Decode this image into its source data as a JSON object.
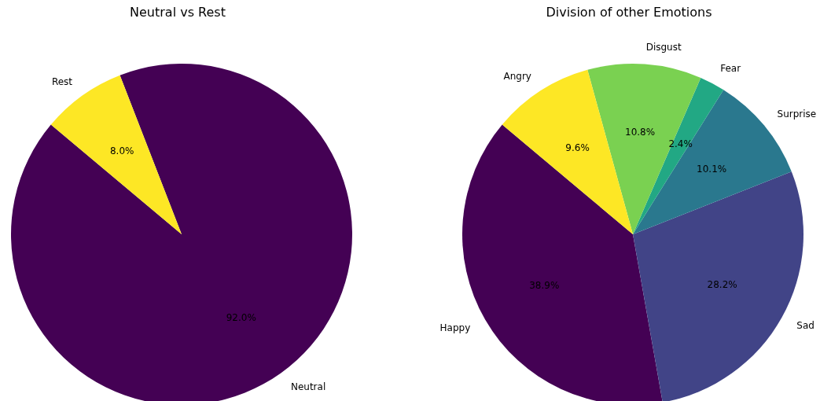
{
  "chart_data": [
    {
      "type": "pie",
      "title": "Neutral vs Rest",
      "categories": [
        "Neutral",
        "Rest"
      ],
      "values": [
        92.0,
        8.0
      ],
      "value_labels": [
        "92.0%",
        "8.0%"
      ],
      "colors": [
        "#440154",
        "#fde725"
      ]
    },
    {
      "type": "pie",
      "title": "Division of other Emotions",
      "categories": [
        "Happy",
        "Sad",
        "Surprise",
        "Fear",
        "Disgust",
        "Angry"
      ],
      "values": [
        38.9,
        28.2,
        10.1,
        2.4,
        10.8,
        9.6
      ],
      "value_labels": [
        "38.9%",
        "28.2%",
        "10.1%",
        "2.4%",
        "10.8%",
        "9.6%"
      ],
      "colors": [
        "#440154",
        "#414487",
        "#2a788e",
        "#22a884",
        "#7ad151",
        "#fde725"
      ]
    }
  ]
}
